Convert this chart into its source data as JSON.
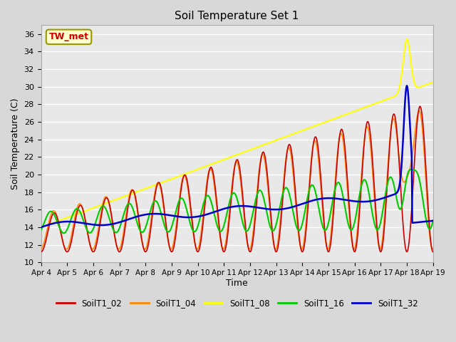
{
  "title": "Soil Temperature Set 1",
  "xlabel": "Time",
  "ylabel": "Soil Temperature (C)",
  "ylim": [
    10,
    37
  ],
  "yticks": [
    10,
    12,
    14,
    16,
    18,
    20,
    22,
    24,
    26,
    28,
    30,
    32,
    34,
    36
  ],
  "annotation_text": "TW_met",
  "annotation_bg": "#ffffcc",
  "annotation_fc": "#cc0000",
  "colors": {
    "SoilT1_02": "#cc0000",
    "SoilT1_04": "#ff8800",
    "SoilT1_08": "#ffff00",
    "SoilT1_16": "#00cc00",
    "SoilT1_32": "#0000cc"
  },
  "legend_labels": [
    "SoilT1_02",
    "SoilT1_04",
    "SoilT1_08",
    "SoilT1_16",
    "SoilT1_32"
  ],
  "xtick_labels": [
    "Apr 4",
    "Apr 5",
    "Apr 6",
    "Apr 7",
    "Apr 8",
    "Apr 9",
    "Apr 10",
    "Apr 11",
    "Apr 12",
    "Apr 13",
    "Apr 14",
    "Apr 15",
    "Apr 16",
    "Apr 17",
    "Apr 18",
    "Apr 19"
  ],
  "bg_color": "#d8d8d8",
  "plot_bg": "#e8e8e8"
}
